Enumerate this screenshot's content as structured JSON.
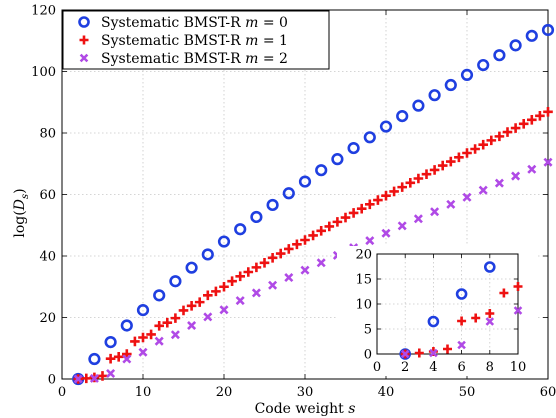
{
  "chart_data": [
    {
      "type": "scatter",
      "xlabel": "Code weight s",
      "ylabel": "log(D_s)",
      "xlim": [
        0,
        60
      ],
      "ylim": [
        0,
        120
      ],
      "xticks": [
        0,
        10,
        20,
        30,
        40,
        50,
        60
      ],
      "yticks": [
        0,
        20,
        40,
        60,
        80,
        100,
        120
      ],
      "grid": true,
      "legend_position": "top-left",
      "series": [
        {
          "name": "Systematic BMST-R m = 0",
          "name_main": "Systematic BMST-R ",
          "name_var": "m",
          "name_tail": " = 0",
          "marker": "circle",
          "color": "#1f3fe0",
          "x": [
            2,
            4,
            6,
            8,
            10,
            12,
            14,
            16,
            18,
            20,
            22,
            24,
            26,
            28,
            30,
            32,
            34,
            36,
            38,
            40,
            42,
            44,
            46,
            48,
            50,
            52,
            54,
            56,
            58,
            60
          ],
          "y": [
            0,
            6.5,
            12,
            17.4,
            22.4,
            27.2,
            31.8,
            36.2,
            40.5,
            44.7,
            48.7,
            52.7,
            56.6,
            60.4,
            64.2,
            67.9,
            71.5,
            75.1,
            78.6,
            82.1,
            85.5,
            88.9,
            92.3,
            95.6,
            98.9,
            102.1,
            105.3,
            108.5,
            111.6,
            113.5
          ]
        },
        {
          "name": "Systematic BMST-R m = 1",
          "name_main": "Systematic BMST-R ",
          "name_var": "m",
          "name_tail": " = 1",
          "marker": "plus",
          "color": "#ee1111",
          "x": [
            2,
            3,
            4,
            5,
            6,
            7,
            8,
            9,
            10,
            11,
            12,
            13,
            14,
            15,
            16,
            17,
            18,
            19,
            20,
            21,
            22,
            23,
            24,
            25,
            26,
            27,
            28,
            29,
            30,
            31,
            32,
            33,
            34,
            35,
            36,
            37,
            38,
            39,
            40,
            41,
            42,
            43,
            44,
            45,
            46,
            47,
            48,
            49,
            50,
            51,
            52,
            53,
            54,
            55,
            56,
            57,
            58,
            59,
            60
          ],
          "y": [
            0,
            0.2,
            0.5,
            1.0,
            6.6,
            7.2,
            8.1,
            12.2,
            13.5,
            14.5,
            17.3,
            18.3,
            19.8,
            22.3,
            23.8,
            25.0,
            27.2,
            28.5,
            30.0,
            31.8,
            33.4,
            34.8,
            36.3,
            37.8,
            39.4,
            40.8,
            42.3,
            43.8,
            45.2,
            46.7,
            48.2,
            49.6,
            51.1,
            52.5,
            54.0,
            55.4,
            56.8,
            58.2,
            59.6,
            61.0,
            62.4,
            63.8,
            65.2,
            66.6,
            68.0,
            69.4,
            70.7,
            72.1,
            73.5,
            74.8,
            76.2,
            77.6,
            78.9,
            80.3,
            81.6,
            83.0,
            84.3,
            85.6,
            86.9
          ]
        },
        {
          "name": "Systematic BMST-R m = 2",
          "name_main": "Systematic BMST-R ",
          "name_var": "m",
          "name_tail": " = 2",
          "marker": "x",
          "color": "#b04ae6",
          "x": [
            2,
            4,
            6,
            8,
            10,
            12,
            14,
            16,
            18,
            20,
            22,
            24,
            26,
            28,
            30,
            32,
            34,
            36,
            38,
            40,
            42,
            44,
            46,
            48,
            50,
            52,
            54,
            56,
            58,
            60
          ],
          "y": [
            0,
            0.2,
            1.8,
            6.5,
            8.7,
            12.3,
            14.4,
            17.4,
            20.2,
            22.5,
            25.5,
            28.0,
            30.5,
            33.0,
            35.4,
            37.8,
            40.2,
            42.7,
            45.0,
            47.4,
            49.8,
            52.1,
            54.4,
            56.8,
            59.1,
            61.4,
            63.7,
            66.0,
            68.2,
            70.5
          ]
        }
      ]
    },
    {
      "type": "scatter",
      "role": "inset",
      "xlim": [
        0,
        10
      ],
      "ylim": [
        0,
        20
      ],
      "xticks": [
        0,
        2,
        4,
        6,
        8,
        10
      ],
      "yticks": [
        0,
        5,
        10,
        15,
        20
      ],
      "grid": true,
      "series": [
        {
          "name": "Systematic BMST-R m = 0",
          "marker": "circle",
          "color": "#1f3fe0",
          "x": [
            2,
            4,
            6,
            8
          ],
          "y": [
            0,
            6.5,
            12,
            17.4
          ]
        },
        {
          "name": "Systematic BMST-R m = 1",
          "marker": "plus",
          "color": "#ee1111",
          "x": [
            2,
            3,
            4,
            5,
            6,
            7,
            8,
            9,
            10
          ],
          "y": [
            0,
            0.2,
            0.5,
            1.0,
            6.6,
            7.2,
            8.1,
            12.2,
            13.5
          ]
        },
        {
          "name": "Systematic BMST-R m = 2",
          "marker": "x",
          "color": "#b04ae6",
          "x": [
            2,
            4,
            6,
            8,
            10
          ],
          "y": [
            0,
            0.2,
            1.8,
            6.5,
            8.7
          ]
        }
      ]
    }
  ]
}
